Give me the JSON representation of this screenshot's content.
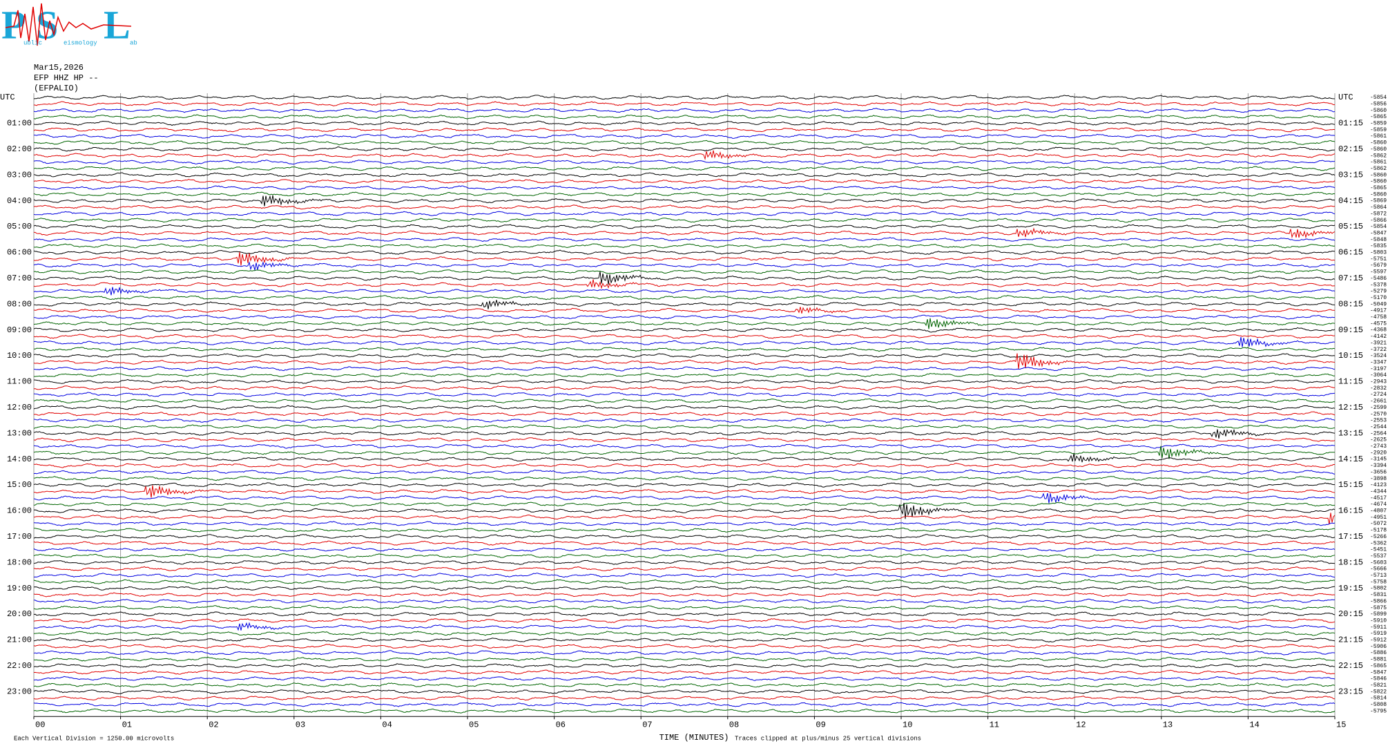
{
  "header": {
    "date": "Mar15,2026",
    "station": "EFP HHZ HP --",
    "location": "(EFPALIO)"
  },
  "logo": {
    "letters": [
      "P",
      "S",
      "L"
    ],
    "words": [
      "ublic",
      "eismology",
      "ab"
    ]
  },
  "axis": {
    "xlim": [
      0,
      15
    ],
    "xticks": [
      {
        "value": 0,
        "label": "00"
      },
      {
        "value": 1,
        "label": "01"
      },
      {
        "value": 2,
        "label": "02"
      },
      {
        "value": 3,
        "label": "03"
      },
      {
        "value": 4,
        "label": "04"
      },
      {
        "value": 5,
        "label": "05"
      },
      {
        "value": 6,
        "label": "06"
      },
      {
        "value": 7,
        "label": "07"
      },
      {
        "value": 8,
        "label": "08"
      },
      {
        "value": 9,
        "label": "09"
      },
      {
        "value": 10,
        "label": "10"
      },
      {
        "value": 11,
        "label": "11"
      },
      {
        "value": 12,
        "label": "12"
      },
      {
        "value": 13,
        "label": "13"
      },
      {
        "value": 14,
        "label": "14"
      },
      15
    ],
    "xlabel": "TIME (MINUTES)"
  },
  "notes": {
    "left": "Each Vertical Division = 1250.00 microvolts",
    "right": "Traces clipped at plus/minus 25 vertical divisions"
  },
  "colors": [
    "#000000",
    "#e00000",
    "#0000e0",
    "#006400"
  ],
  "rows": {
    "left": [
      "UTC",
      null,
      null,
      null,
      "01:00",
      null,
      null,
      null,
      "02:00",
      null,
      null,
      null,
      "03:00",
      null,
      null,
      null,
      "04:00",
      null,
      null,
      null,
      "05:00",
      null,
      null,
      null,
      "06:00",
      null,
      null,
      null,
      "07:00",
      null,
      null,
      null,
      "08:00",
      null,
      null,
      null,
      "09:00",
      null,
      null,
      null,
      "10:00",
      null,
      null,
      null,
      "11:00",
      null,
      null,
      null,
      "12:00",
      null,
      null,
      null,
      "13:00",
      null,
      null,
      null,
      "14:00",
      null,
      null,
      null,
      "15:00",
      null,
      null,
      null,
      "16:00",
      null,
      null,
      null,
      "17:00",
      null,
      null,
      null,
      "18:00",
      null,
      null,
      null,
      "19:00",
      null,
      null,
      null,
      "20:00",
      null,
      null,
      null,
      "21:00",
      null,
      null,
      null,
      "22:00",
      null,
      null,
      null,
      "23:00",
      null,
      null,
      null
    ],
    "right": [
      "UTC",
      null,
      null,
      null,
      "01:15",
      null,
      null,
      null,
      "02:15",
      null,
      null,
      null,
      "03:15",
      null,
      null,
      null,
      "04:15",
      null,
      null,
      null,
      "05:15",
      null,
      null,
      null,
      "06:15",
      null,
      null,
      null,
      "07:15",
      null,
      null,
      null,
      "08:15",
      null,
      null,
      null,
      "09:15",
      null,
      null,
      null,
      "10:15",
      null,
      null,
      null,
      "11:15",
      null,
      null,
      null,
      "12:15",
      null,
      null,
      null,
      "13:15",
      null,
      null,
      null,
      "14:15",
      null,
      null,
      null,
      "15:15",
      null,
      null,
      null,
      "16:15",
      null,
      null,
      null,
      "17:15",
      null,
      null,
      null,
      "18:15",
      null,
      null,
      null,
      "19:15",
      null,
      null,
      null,
      "20:15",
      null,
      null,
      null,
      "21:15",
      null,
      null,
      null,
      "22:15",
      null,
      null,
      null,
      "23:15",
      null,
      null,
      null
    ],
    "offsets": [
      -5854,
      -5856,
      -5860,
      -5865,
      -5859,
      -5859,
      -5861,
      -5860,
      -5860,
      -5862,
      -5861,
      -5862,
      -5860,
      -5860,
      -5865,
      -5860,
      -5869,
      -5864,
      -5872,
      -5866,
      -5854,
      -5847,
      -5848,
      -5835,
      -5803,
      -5751,
      -5679,
      -5597,
      -5486,
      -5378,
      -5279,
      -5170,
      -5049,
      -4917,
      -4758,
      -4575,
      -4368,
      -4142,
      -3921,
      -3722,
      -3524,
      -3347,
      -3197,
      -3064,
      -2943,
      -2832,
      -2724,
      -2661,
      -2599,
      -2570,
      -2553,
      -2544,
      -2564,
      -2625,
      -2743,
      -2920,
      -3145,
      -3394,
      -3656,
      -3898,
      -4123,
      -4344,
      -4517,
      -4674,
      -4807,
      -4951,
      -5072,
      -5178,
      -5266,
      -5362,
      -5451,
      -5537,
      -5603,
      -5666,
      -5713,
      -5758,
      -5802,
      -5831,
      -5866,
      -5875,
      -5899,
      -5910,
      -5911,
      -5919,
      -5912,
      -5906,
      -5886,
      -5881,
      -5865,
      -5847,
      -5846,
      -5821,
      -5822,
      -5814,
      -5808,
      -5795
    ]
  }
}
